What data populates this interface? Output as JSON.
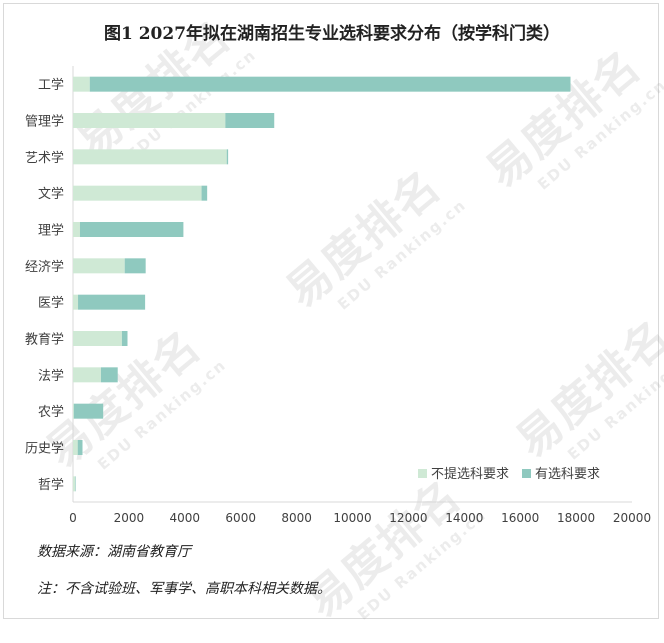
{
  "watermark": {
    "main": "易度排名",
    "sub": "EDU Ranking.cn"
  },
  "notes": {
    "source": "数据来源：湖南省教育厅",
    "footnote": "注：不含试验班、军事学、高职本科相关数据。"
  },
  "colors": {
    "no_requirement": "#cfe9d5",
    "with_requirement": "#8fc9bf",
    "axis": "#d9d9d9",
    "text": "#404040"
  },
  "chart_data": {
    "type": "bar",
    "orientation": "horizontal",
    "stacked": true,
    "title": "图1 2027年拟在湖南招生专业选科要求分布（按学科门类）",
    "categories": [
      "工学",
      "管理学",
      "艺术学",
      "文学",
      "理学",
      "经济学",
      "医学",
      "教育学",
      "法学",
      "农学",
      "历史学",
      "哲学"
    ],
    "series": [
      {
        "name": "不提选科要求",
        "color": "#cfe9d5",
        "values": [
          600,
          5450,
          5500,
          4600,
          250,
          1850,
          180,
          1750,
          1000,
          30,
          170,
          80
        ]
      },
      {
        "name": "有选科要求",
        "color": "#8fc9bf",
        "values": [
          17200,
          1750,
          50,
          200,
          3700,
          750,
          2400,
          200,
          600,
          1050,
          170,
          20
        ]
      }
    ],
    "xlim": [
      0,
      20000
    ],
    "x_ticks": [
      "0",
      "2000",
      "4000",
      "6000",
      "8000",
      "10000",
      "12000",
      "14000",
      "16000",
      "18000",
      "20000"
    ],
    "grid": false,
    "legend_position": "bottom-right"
  }
}
